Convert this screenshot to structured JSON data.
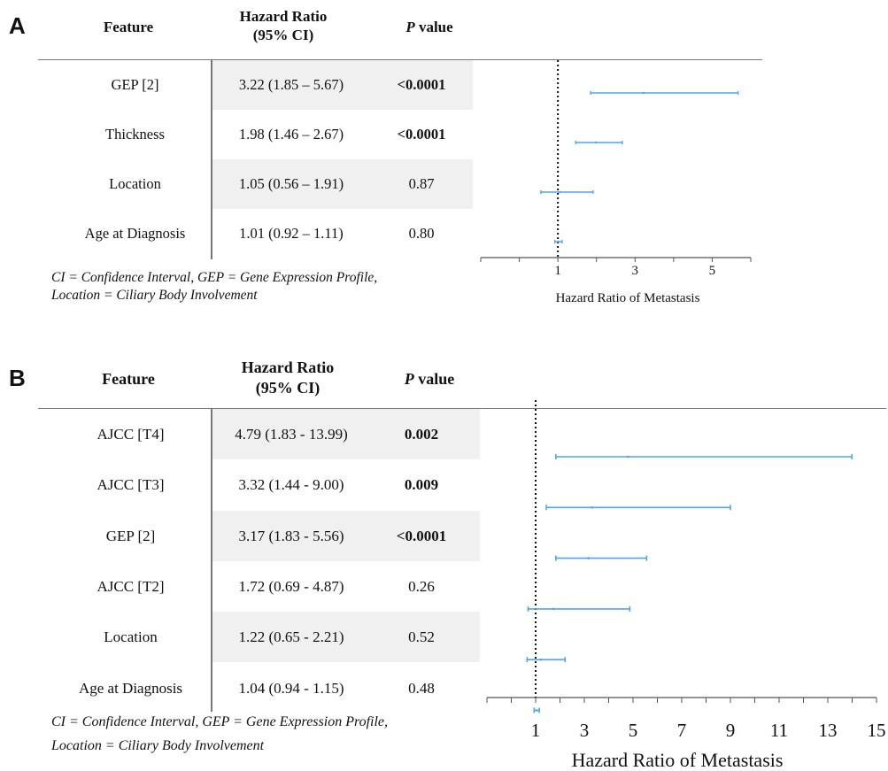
{
  "chart_data": [
    {
      "type": "forest",
      "panel": "A",
      "table": {
        "headers": {
          "feature": "Feature",
          "hr_line1": "Hazard Ratio",
          "hr_line2": "(95% CI)",
          "p_italic": "P",
          "p_rest": " value"
        },
        "rows": [
          {
            "feature": "GEP [2]",
            "hr_text": "3.22 (1.85 – 5.67)",
            "p": "<0.0001",
            "p_bold": true,
            "hr": 3.22,
            "lo": 1.85,
            "hi": 5.67
          },
          {
            "feature": "Thickness",
            "hr_text": "1.98 (1.46 – 2.67)",
            "p": "<0.0001",
            "p_bold": true,
            "hr": 1.98,
            "lo": 1.46,
            "hi": 2.67
          },
          {
            "feature": "Location",
            "hr_text": "1.05 (0.56 – 1.91)",
            "p": "0.87",
            "p_bold": false,
            "hr": 1.05,
            "lo": 0.56,
            "hi": 1.91
          },
          {
            "feature": "Age at Diagnosis",
            "hr_text": "1.01 (0.92 – 1.11)",
            "p": "0.80",
            "p_bold": false,
            "hr": 1.01,
            "lo": 0.92,
            "hi": 1.11
          }
        ]
      },
      "footnote": [
        "CI = Confidence Interval, GEP = Gene Expression Profile,",
        "Location = Ciliary Body Involvement"
      ],
      "xlabel": "Hazard Ratio of Metastasis",
      "xlim": [
        -1,
        6
      ],
      "xticks": [
        1,
        3,
        5
      ],
      "reference_line": 1,
      "series_color": "#4da6e8"
    },
    {
      "type": "forest",
      "panel": "B",
      "table": {
        "headers": {
          "feature": "Feature",
          "hr_line1": "Hazard Ratio",
          "hr_line2": "(95% CI)",
          "p_italic": "P",
          "p_rest": " value"
        },
        "rows": [
          {
            "feature": "AJCC [T4]",
            "hr_text": "4.79 (1.83 - 13.99)",
            "p": "0.002",
            "p_bold": true,
            "hr": 4.79,
            "lo": 1.83,
            "hi": 13.99
          },
          {
            "feature": "AJCC [T3]",
            "hr_text": "3.32 (1.44 - 9.00)",
            "p": "0.009",
            "p_bold": true,
            "hr": 3.32,
            "lo": 1.44,
            "hi": 9.0
          },
          {
            "feature": "GEP [2]",
            "hr_text": "3.17 (1.83 - 5.56)",
            "p": "<0.0001",
            "p_bold": true,
            "hr": 3.17,
            "lo": 1.83,
            "hi": 5.56
          },
          {
            "feature": "AJCC [T2]",
            "hr_text": "1.72 (0.69 - 4.87)",
            "p": "0.26",
            "p_bold": false,
            "hr": 1.72,
            "lo": 0.69,
            "hi": 4.87
          },
          {
            "feature": "Location",
            "hr_text": "1.22 (0.65 - 2.21)",
            "p": "0.52",
            "p_bold": false,
            "hr": 1.22,
            "lo": 0.65,
            "hi": 2.21
          },
          {
            "feature": "Age at Diagnosis",
            "hr_text": "1.04 (0.94 - 1.15)",
            "p": "0.48",
            "p_bold": false,
            "hr": 1.04,
            "lo": 0.94,
            "hi": 1.15
          }
        ]
      },
      "footnote": [
        "CI = Confidence Interval, GEP = Gene Expression Profile,",
        "Location = Ciliary Body Involvement"
      ],
      "xlabel": "Hazard Ratio of Metastasis",
      "xlim": [
        -1,
        15
      ],
      "xticks": [
        1,
        3,
        5,
        7,
        9,
        11,
        13,
        15
      ],
      "reference_line": 1,
      "series_color": "#4da6e8"
    }
  ]
}
